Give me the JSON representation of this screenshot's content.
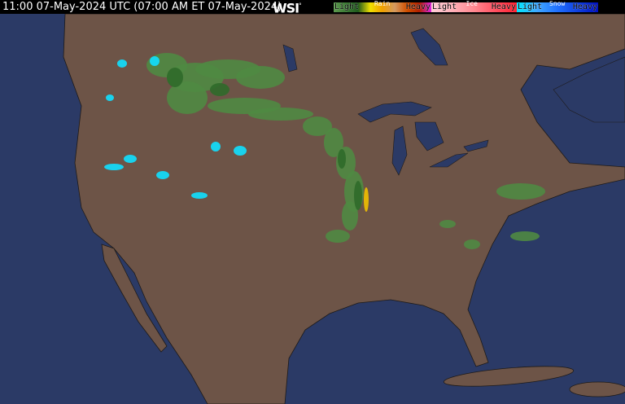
{
  "header": {
    "title": "11:00 07-May-2024 UTC  (07:00 AM ET 07-May-2024)",
    "logo": "WSI",
    "logo_mark": "°"
  },
  "legend": {
    "rain": {
      "label": "Rain",
      "light": "Light",
      "heavy": "Heavy",
      "colors": [
        "#5d9b4f",
        "#3d7a35",
        "#1f5a1d",
        "#f0e000",
        "#f0a000",
        "#d49a60",
        "#d05000",
        "#b02000",
        "#e020e0"
      ]
    },
    "ice": {
      "label": "Ice",
      "light": "Light",
      "heavy": "Heavy",
      "colors": [
        "#ffd0d8",
        "#ffb0b8",
        "#ff8890",
        "#ff5060",
        "#ff2030"
      ]
    },
    "snow": {
      "label": "Snow",
      "light": "Light",
      "heavy": "Heavy",
      "colors": [
        "#00e8ff",
        "#40a8ff",
        "#2070ff",
        "#1040e0",
        "#0010c0"
      ]
    }
  },
  "map": {
    "ocean_color": "#2b3a66",
    "land_color": "#6d5447",
    "border_color": "#1e1a18"
  }
}
